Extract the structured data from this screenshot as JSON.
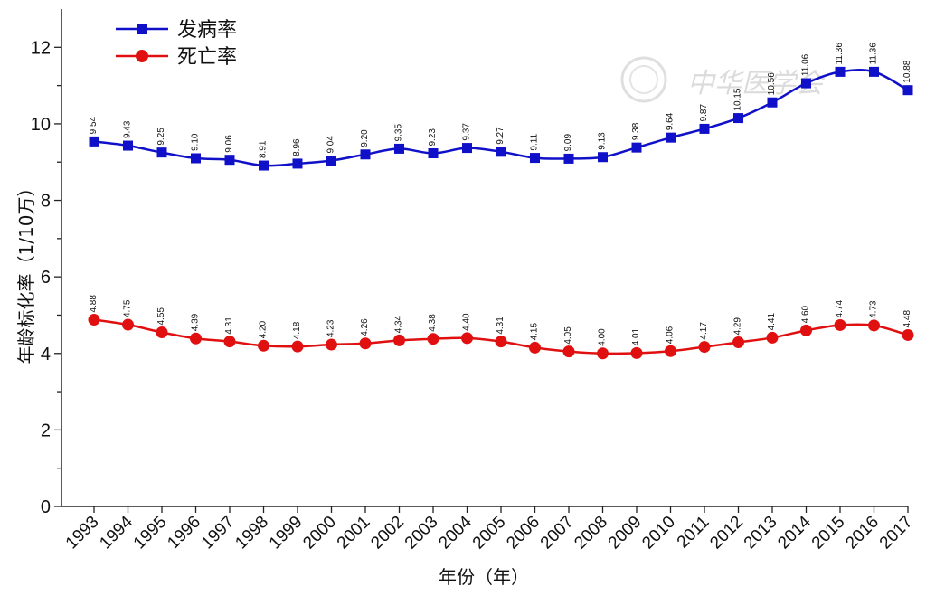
{
  "chart_data": {
    "type": "line",
    "xlabel": "年份（年）",
    "ylabel": "年龄标化率（1/10万）",
    "ylim": [
      0,
      13
    ],
    "yticks": [
      0,
      2,
      4,
      6,
      8,
      10,
      12
    ],
    "legend_position": "top-left",
    "grid": false,
    "categories": [
      "1993",
      "1994",
      "1995",
      "1996",
      "1997",
      "1998",
      "1999",
      "2000",
      "2001",
      "2002",
      "2003",
      "2004",
      "2005",
      "2006",
      "2007",
      "2008",
      "2009",
      "2010",
      "2011",
      "2012",
      "2013",
      "2014",
      "2015",
      "2016",
      "2017"
    ],
    "series": [
      {
        "name": "发病率",
        "color": "#1010c8",
        "marker": "square",
        "values": [
          9.54,
          9.43,
          9.25,
          9.1,
          9.06,
          8.91,
          8.96,
          9.04,
          9.2,
          9.35,
          9.23,
          9.37,
          9.27,
          9.11,
          9.09,
          9.13,
          9.38,
          9.64,
          9.87,
          10.15,
          10.56,
          11.06,
          11.36,
          11.36,
          10.88
        ],
        "labels": [
          "9.54",
          "9.43",
          "9.25",
          "9.10",
          "9.06",
          "8.91",
          "8.96",
          "9.04",
          "9.20",
          "9.35",
          "9.23",
          "9.37",
          "9.27",
          "9.11",
          "9.09",
          "9.13",
          "9.38",
          "9.64",
          "9.87",
          "10.15",
          "10.56",
          "11.06",
          "11.36",
          "11.36",
          "10.88"
        ]
      },
      {
        "name": "死亡率",
        "color": "#e01010",
        "marker": "circle",
        "values": [
          4.88,
          4.75,
          4.55,
          4.39,
          4.31,
          4.2,
          4.18,
          4.23,
          4.26,
          4.34,
          4.38,
          4.4,
          4.31,
          4.15,
          4.05,
          4.0,
          4.01,
          4.06,
          4.17,
          4.29,
          4.41,
          4.6,
          4.74,
          4.73,
          4.48
        ],
        "labels": [
          "4.88",
          "4.75",
          "4.55",
          "4.39",
          "4.31",
          "4.20",
          "4.18",
          "4.23",
          "4.26",
          "4.34",
          "4.38",
          "4.40",
          "4.31",
          "4.15",
          "4.05",
          "4.00",
          "4.01",
          "4.06",
          "4.17",
          "4.29",
          "4.41",
          "4.60",
          "4.74",
          "4.73",
          "4.48"
        ]
      }
    ]
  },
  "watermark": {
    "text": "中华医学会",
    "icon": "seal-logo"
  }
}
